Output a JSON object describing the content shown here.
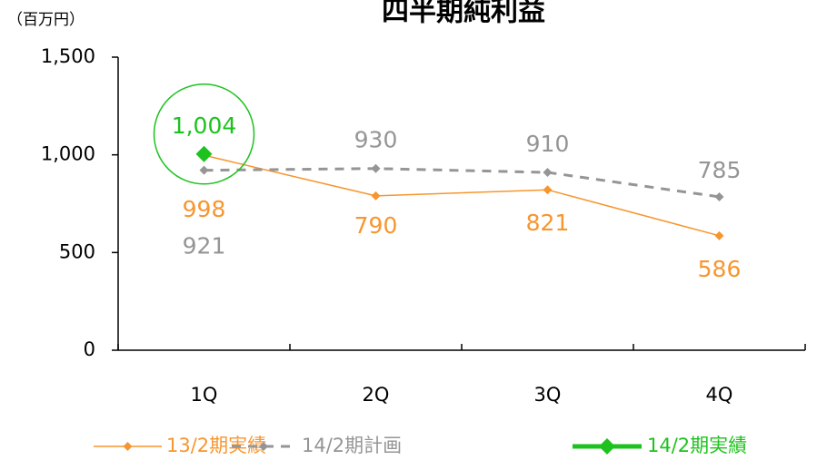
{
  "chart_data": {
    "type": "line",
    "title": "四半期純利益",
    "y_unit": "（百万円）",
    "categories": [
      "1Q",
      "2Q",
      "3Q",
      "4Q"
    ],
    "series": [
      {
        "name": "13/2期実績",
        "color": "#f7962f",
        "style": "solid",
        "values": [
          998,
          790,
          821,
          586
        ]
      },
      {
        "name": "14/2期計画",
        "color": "#959595",
        "style": "dashed",
        "values": [
          921,
          930,
          910,
          785
        ]
      },
      {
        "name": "14/2期実績",
        "color": "#1ec21e",
        "style": "solid",
        "values": [
          1004,
          null,
          null,
          null
        ],
        "value_labels": [
          "1,004",
          null,
          null,
          null
        ]
      }
    ],
    "ylim": [
      0,
      1500
    ],
    "yticks": [
      0,
      500,
      {
        "value": 1000,
        "label": "1,000"
      },
      {
        "value": 1500,
        "label": "1,500"
      }
    ],
    "grid": false,
    "legend": "bottom"
  }
}
